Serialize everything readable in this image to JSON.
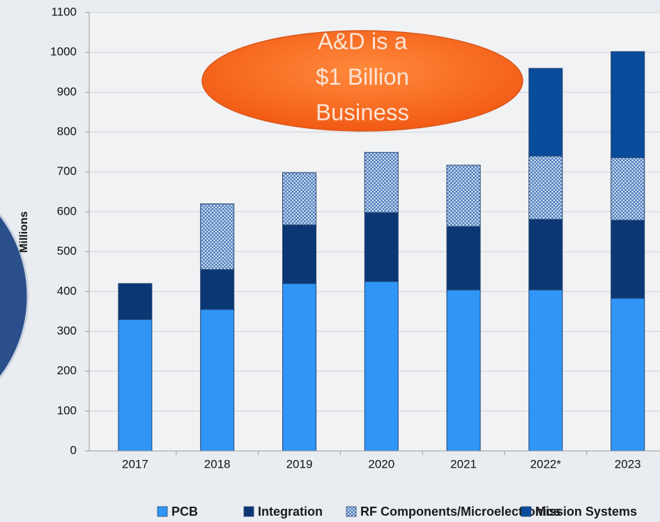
{
  "chart_data": {
    "type": "stacked_bar",
    "y_label": "Millions",
    "annotation": [
      "A&D is a",
      "$1 Billion",
      "Business"
    ],
    "categories": [
      "2017",
      "2018",
      "2019",
      "2020",
      "2021",
      "2022*",
      "2023"
    ],
    "series": [
      {
        "name": "PCB",
        "color": "#2f96f7",
        "values": [
          330,
          355,
          420,
          425,
          404,
          404,
          383
        ]
      },
      {
        "name": "Integration",
        "color": "#0b3775",
        "values": [
          90,
          100,
          147,
          173,
          159,
          177,
          196
        ]
      },
      {
        "name": "RF Components/Microelectronics",
        "color": "#3b6fb4",
        "pattern": "crosshatch",
        "values": [
          null,
          165,
          131,
          151,
          154,
          159,
          157
        ]
      },
      {
        "name": "Mission Systems",
        "color": "#0a4c9c",
        "values": [
          null,
          null,
          null,
          null,
          null,
          220,
          266
        ]
      }
    ],
    "ylim": [
      0,
      1100
    ],
    "yticks": [
      0,
      100,
      200,
      300,
      400,
      500,
      600,
      700,
      800,
      900,
      1000,
      1100
    ],
    "grid": true,
    "legend": "bottom"
  }
}
